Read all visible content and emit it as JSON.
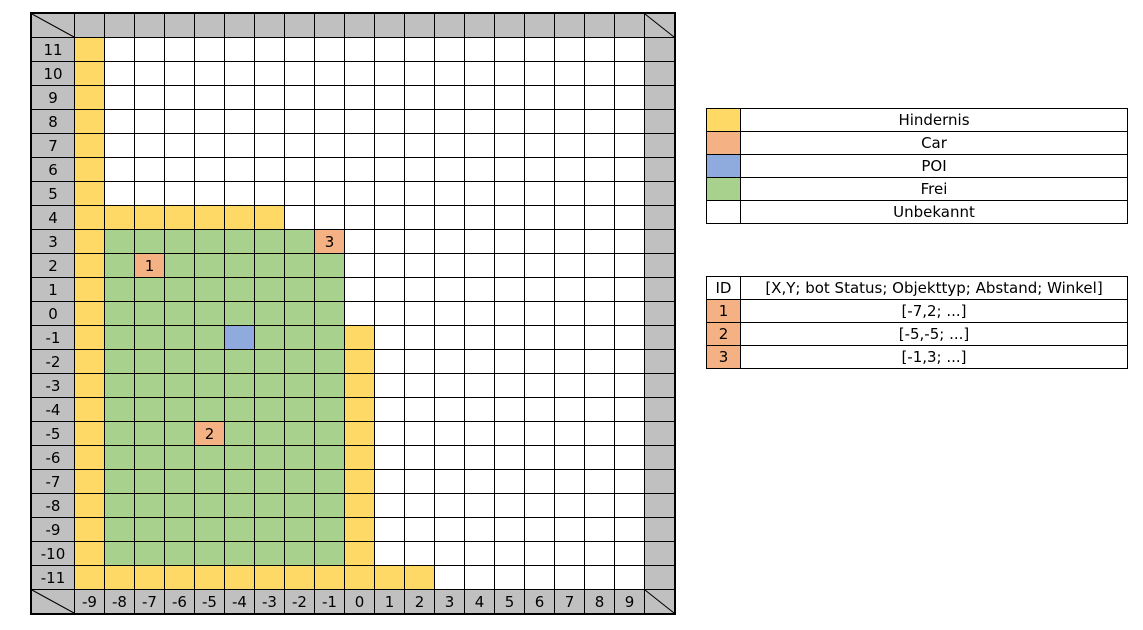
{
  "colors": {
    "hindernis": "#ffd966",
    "car": "#f4b183",
    "poi": "#8faadc",
    "frei": "#a9d18e",
    "unbekannt": "#ffffff",
    "header": "#c0c0c0"
  },
  "grid": {
    "x_labels": [
      "-9",
      "-8",
      "-7",
      "-6",
      "-5",
      "-4",
      "-3",
      "-2",
      "-1",
      "0",
      "1",
      "2",
      "3",
      "4",
      "5",
      "6",
      "7",
      "8",
      "9"
    ],
    "y_labels": [
      "11",
      "10",
      "9",
      "8",
      "7",
      "6",
      "5",
      "4",
      "3",
      "2",
      "1",
      "0",
      "-1",
      "-2",
      "-3",
      "-4",
      "-5",
      "-6",
      "-7",
      "-8",
      "-9",
      "-10",
      "-11"
    ],
    "cars": [
      {
        "id": "1",
        "x": -7,
        "y": 2
      },
      {
        "id": "2",
        "x": -5,
        "y": -5
      },
      {
        "id": "3",
        "x": -1,
        "y": 3
      }
    ],
    "poi": {
      "x": -4,
      "y": -1
    }
  },
  "legend": [
    {
      "key": "hindernis",
      "label": "Hindernis"
    },
    {
      "key": "car",
      "label": "Car"
    },
    {
      "key": "poi",
      "label": "POI"
    },
    {
      "key": "frei",
      "label": "Frei"
    },
    {
      "key": "unbekannt",
      "label": "Unbekannt"
    }
  ],
  "robots": {
    "header_id": "ID",
    "header_fields": "[X,Y; bot Status; Objekttyp; Abstand; Winkel]",
    "rows": [
      {
        "id": "1",
        "value": "[-7,2; ...]"
      },
      {
        "id": "2",
        "value": "[-5,-5; ...]"
      },
      {
        "id": "3",
        "value": "[-1,3; ...]"
      }
    ]
  }
}
